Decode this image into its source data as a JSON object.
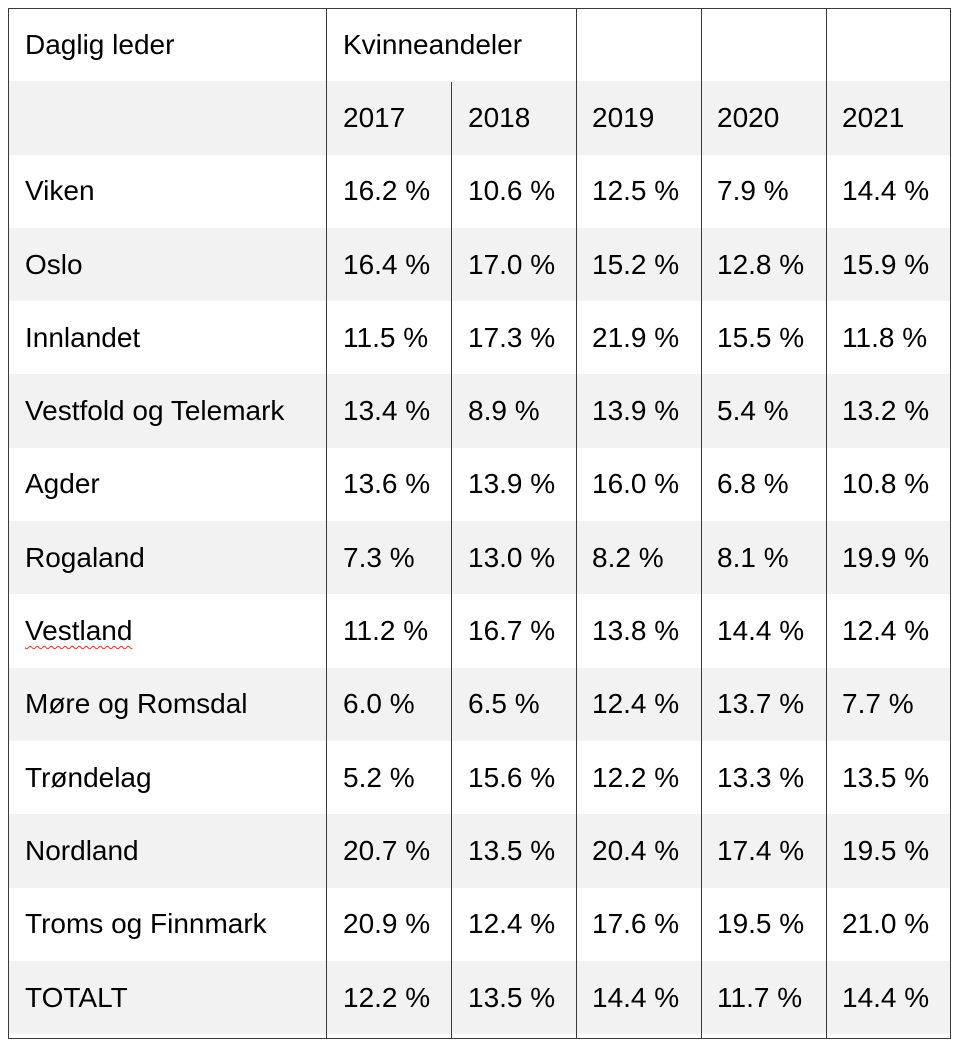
{
  "table": {
    "header_label": "Daglig leder",
    "group_label": "Kvinneandeler",
    "years": [
      "2017",
      "2018",
      "2019",
      "2020",
      "2021"
    ],
    "rows": [
      {
        "region": "Viken",
        "values": [
          "16.2 %",
          "10.6 %",
          "12.5 %",
          "7.9 %",
          "14.4 %"
        ]
      },
      {
        "region": "Oslo",
        "values": [
          "16.4 %",
          "17.0 %",
          "15.2 %",
          "12.8 %",
          "15.9 %"
        ]
      },
      {
        "region": "Innlandet",
        "values": [
          "11.5 %",
          "17.3 %",
          "21.9 %",
          "15.5 %",
          "11.8 %"
        ]
      },
      {
        "region": "Vestfold og Telemark",
        "values": [
          "13.4 %",
          "8.9 %",
          "13.9 %",
          "5.4 %",
          "13.2 %"
        ]
      },
      {
        "region": "Agder",
        "values": [
          "13.6 %",
          "13.9 %",
          "16.0 %",
          "6.8 %",
          "10.8 %"
        ]
      },
      {
        "region": "Rogaland",
        "values": [
          "7.3 %",
          "13.0 %",
          "8.2 %",
          "8.1 %",
          "19.9 %"
        ]
      },
      {
        "region": "Vestland",
        "values": [
          "11.2 %",
          "16.7 %",
          "13.8 %",
          "14.4 %",
          "12.4 %"
        ]
      },
      {
        "region": "Møre og Romsdal",
        "values": [
          "6.0 %",
          "6.5 %",
          "12.4 %",
          "13.7 %",
          "7.7 %"
        ]
      },
      {
        "region": "Trøndelag",
        "values": [
          "5.2 %",
          "15.6 %",
          "12.2 %",
          "13.3 %",
          "13.5 %"
        ]
      },
      {
        "region": "Nordland",
        "values": [
          "20.7 %",
          "13.5 %",
          "20.4 %",
          "17.4 %",
          "19.5 %"
        ]
      },
      {
        "region": "Troms og Finnmark",
        "values": [
          "20.9 %",
          "12.4 %",
          "17.6 %",
          "19.5 %",
          "21.0 %"
        ]
      },
      {
        "region": "TOTALT",
        "values": [
          "12.2 %",
          "13.5 %",
          "14.4 %",
          "11.7 %",
          "14.4 %"
        ]
      }
    ]
  }
}
